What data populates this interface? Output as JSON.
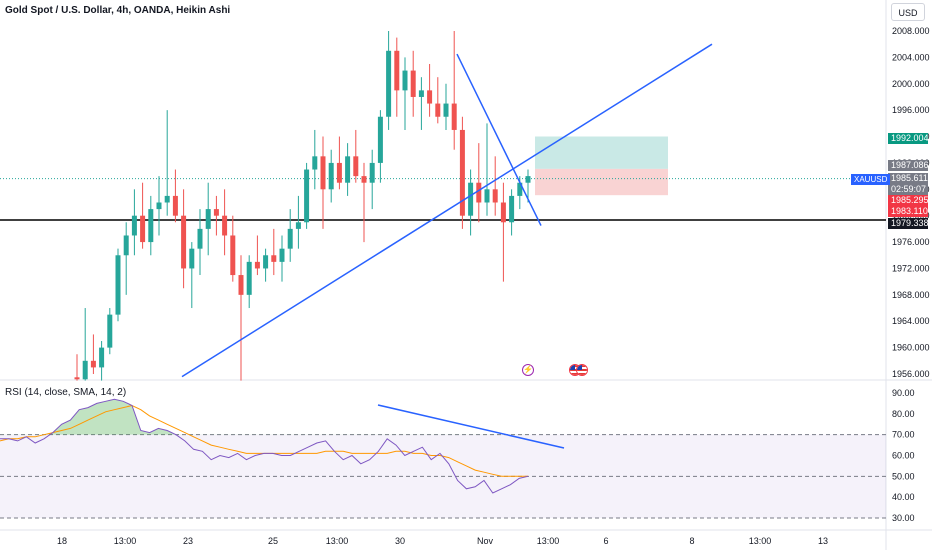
{
  "header": {
    "title": "Gold Spot / U.S. Dollar, 4h, OANDA, Heikin Ashi",
    "currency_button": "USD"
  },
  "rsi_panel": {
    "title": "RSI (14, close, SMA, 14, 2)",
    "ticks": [
      "90.00",
      "80.00",
      "70.00",
      "60.00",
      "50.00",
      "40.00",
      "30.00"
    ],
    "upper_band": 70,
    "lower_band": 30,
    "mid_line": 50
  },
  "price_axis": {
    "ticks": [
      "2008.000",
      "2004.000",
      "2000.000",
      "1996.000",
      "1992.000",
      "1988.000",
      "1984.000",
      "1980.000",
      "1976.000",
      "1972.000",
      "1968.000",
      "1964.000",
      "1960.000",
      "1956.000"
    ]
  },
  "time_axis": {
    "labels": [
      "18",
      "13:00",
      "23",
      "25",
      "13:00",
      "30",
      "Nov",
      "13:00",
      "6",
      "8",
      "13:00",
      "13"
    ]
  },
  "price_tags": {
    "target": "1992.004",
    "stop_top": "1987.086",
    "last": "1985.611",
    "countdown": "02:59:07",
    "entry": "1985.295",
    "stop": "1983.110",
    "support": "1979.338",
    "symbol": "XAUUSD"
  },
  "colors": {
    "up": "#26a69a",
    "down": "#ef5350",
    "drawing": "#2962ff",
    "support_line": "#000000",
    "rsi_line": "#7e57c2",
    "rsi_ma": "#ff9800",
    "target_zone": "#b2dfdb",
    "stop_zone": "#f8c8c8"
  },
  "icons": [
    "lightning-event-icon",
    "us-flag-event-icon"
  ],
  "chart_data": {
    "type": "candlestick",
    "title": "Gold Spot / U.S. Dollar, 4h, OANDA, Heikin Ashi",
    "ylim": [
      1955,
      2010
    ],
    "support_level": 1979.338,
    "candles": [
      [
        1955.5,
        1959,
        1955,
        1955.2
      ],
      [
        1955.2,
        1966,
        1955,
        1958
      ],
      [
        1958,
        1962,
        1956,
        1957
      ],
      [
        1957,
        1961,
        1955,
        1960
      ],
      [
        1960,
        1966,
        1959,
        1965
      ],
      [
        1965,
        1975,
        1964,
        1974
      ],
      [
        1974,
        1979,
        1968,
        1977
      ],
      [
        1977,
        1984,
        1974,
        1980
      ],
      [
        1980,
        1985,
        1975,
        1976
      ],
      [
        1976,
        1983,
        1974,
        1981
      ],
      [
        1981,
        1986,
        1977,
        1982
      ],
      [
        1982,
        1996,
        1980,
        1983
      ],
      [
        1983,
        1987,
        1979,
        1980
      ],
      [
        1980,
        1984,
        1969,
        1972
      ],
      [
        1972,
        1976,
        1966,
        1975
      ],
      [
        1975,
        1981,
        1971,
        1978
      ],
      [
        1978,
        1985,
        1974,
        1981
      ],
      [
        1981,
        1983,
        1977,
        1980
      ],
      [
        1980,
        1984,
        1974,
        1977
      ],
      [
        1977,
        1980,
        1970,
        1971
      ],
      [
        1971,
        1974,
        1955,
        1968
      ],
      [
        1968,
        1974,
        1966,
        1973
      ],
      [
        1973,
        1977,
        1971,
        1972
      ],
      [
        1972,
        1975,
        1970,
        1974
      ],
      [
        1974,
        1978,
        1971,
        1973
      ],
      [
        1973,
        1977,
        1970,
        1975
      ],
      [
        1975,
        1981,
        1973,
        1978
      ],
      [
        1978,
        1983,
        1975,
        1979
      ],
      [
        1979,
        1988,
        1978,
        1987
      ],
      [
        1987,
        1993,
        1984,
        1989
      ],
      [
        1989,
        1992,
        1978,
        1984
      ],
      [
        1984,
        1990,
        1982,
        1988
      ],
      [
        1988,
        1992,
        1984,
        1985
      ],
      [
        1985,
        1991,
        1983,
        1989
      ],
      [
        1989,
        1993,
        1985,
        1986
      ],
      [
        1986,
        1988,
        1976,
        1985
      ],
      [
        1985,
        1990,
        1981,
        1988
      ],
      [
        1988,
        1996,
        1985,
        1995
      ],
      [
        1995,
        2008,
        1993,
        2005
      ],
      [
        2005,
        2007,
        1995,
        1999
      ],
      [
        1999,
        2004,
        1993,
        2002
      ],
      [
        2002,
        2005,
        1995,
        1998
      ],
      [
        1998,
        2001,
        1993,
        1999
      ],
      [
        1999,
        2003,
        1995,
        1997
      ],
      [
        1997,
        2001,
        1994,
        1995
      ],
      [
        1995,
        2000,
        1993,
        1997
      ],
      [
        1997,
        2008,
        1990,
        1993
      ],
      [
        1993,
        1995,
        1978,
        1980
      ],
      [
        1980,
        1987,
        1977,
        1985
      ],
      [
        1985,
        1991,
        1979,
        1982
      ],
      [
        1982,
        1994,
        1980,
        1984
      ],
      [
        1984,
        1989,
        1980,
        1982
      ],
      [
        1982,
        1985,
        1970,
        1979
      ],
      [
        1979,
        1984,
        1977,
        1983
      ],
      [
        1983,
        1986,
        1981,
        1985
      ],
      [
        1985,
        1987,
        1982,
        1986
      ]
    ],
    "trend_lines": [
      {
        "name": "rising-trendline",
        "points": [
          [
            "start",
            1955.6
          ],
          [
            "end",
            2006
          ]
        ]
      },
      {
        "name": "falling-trendline",
        "points": [
          [
            "a",
            2004.5
          ],
          [
            "b",
            1978.5
          ]
        ]
      }
    ],
    "position": {
      "target": 1992.004,
      "entry": 1985.295,
      "stop": 1983.11
    },
    "rsi": [
      68,
      68,
      67,
      69,
      66,
      68,
      71,
      75,
      77,
      82,
      83,
      85,
      86,
      87,
      86,
      84,
      72,
      71,
      73,
      72,
      70,
      67,
      63,
      62,
      58,
      60,
      59,
      61,
      58,
      60,
      61,
      61,
      60,
      60,
      62,
      64,
      66,
      67,
      62,
      58,
      60,
      56,
      58,
      62,
      68,
      65,
      60,
      62,
      64,
      58,
      61,
      56,
      48,
      44,
      45,
      48,
      42,
      44,
      46,
      49,
      50
    ],
    "rsi_ma": [
      67,
      68,
      68,
      69,
      69,
      70,
      71,
      72,
      73,
      75,
      77,
      79,
      81,
      82,
      83,
      84,
      82,
      79,
      77,
      75,
      73,
      71,
      69,
      67,
      65,
      64,
      63,
      62,
      61,
      61,
      61,
      61,
      61,
      61,
      61,
      61,
      61,
      62,
      62,
      62,
      61,
      61,
      61,
      61,
      61,
      62,
      62,
      61,
      61,
      60,
      60,
      59,
      57,
      55,
      53,
      52,
      51,
      50,
      50,
      50,
      50
    ]
  }
}
